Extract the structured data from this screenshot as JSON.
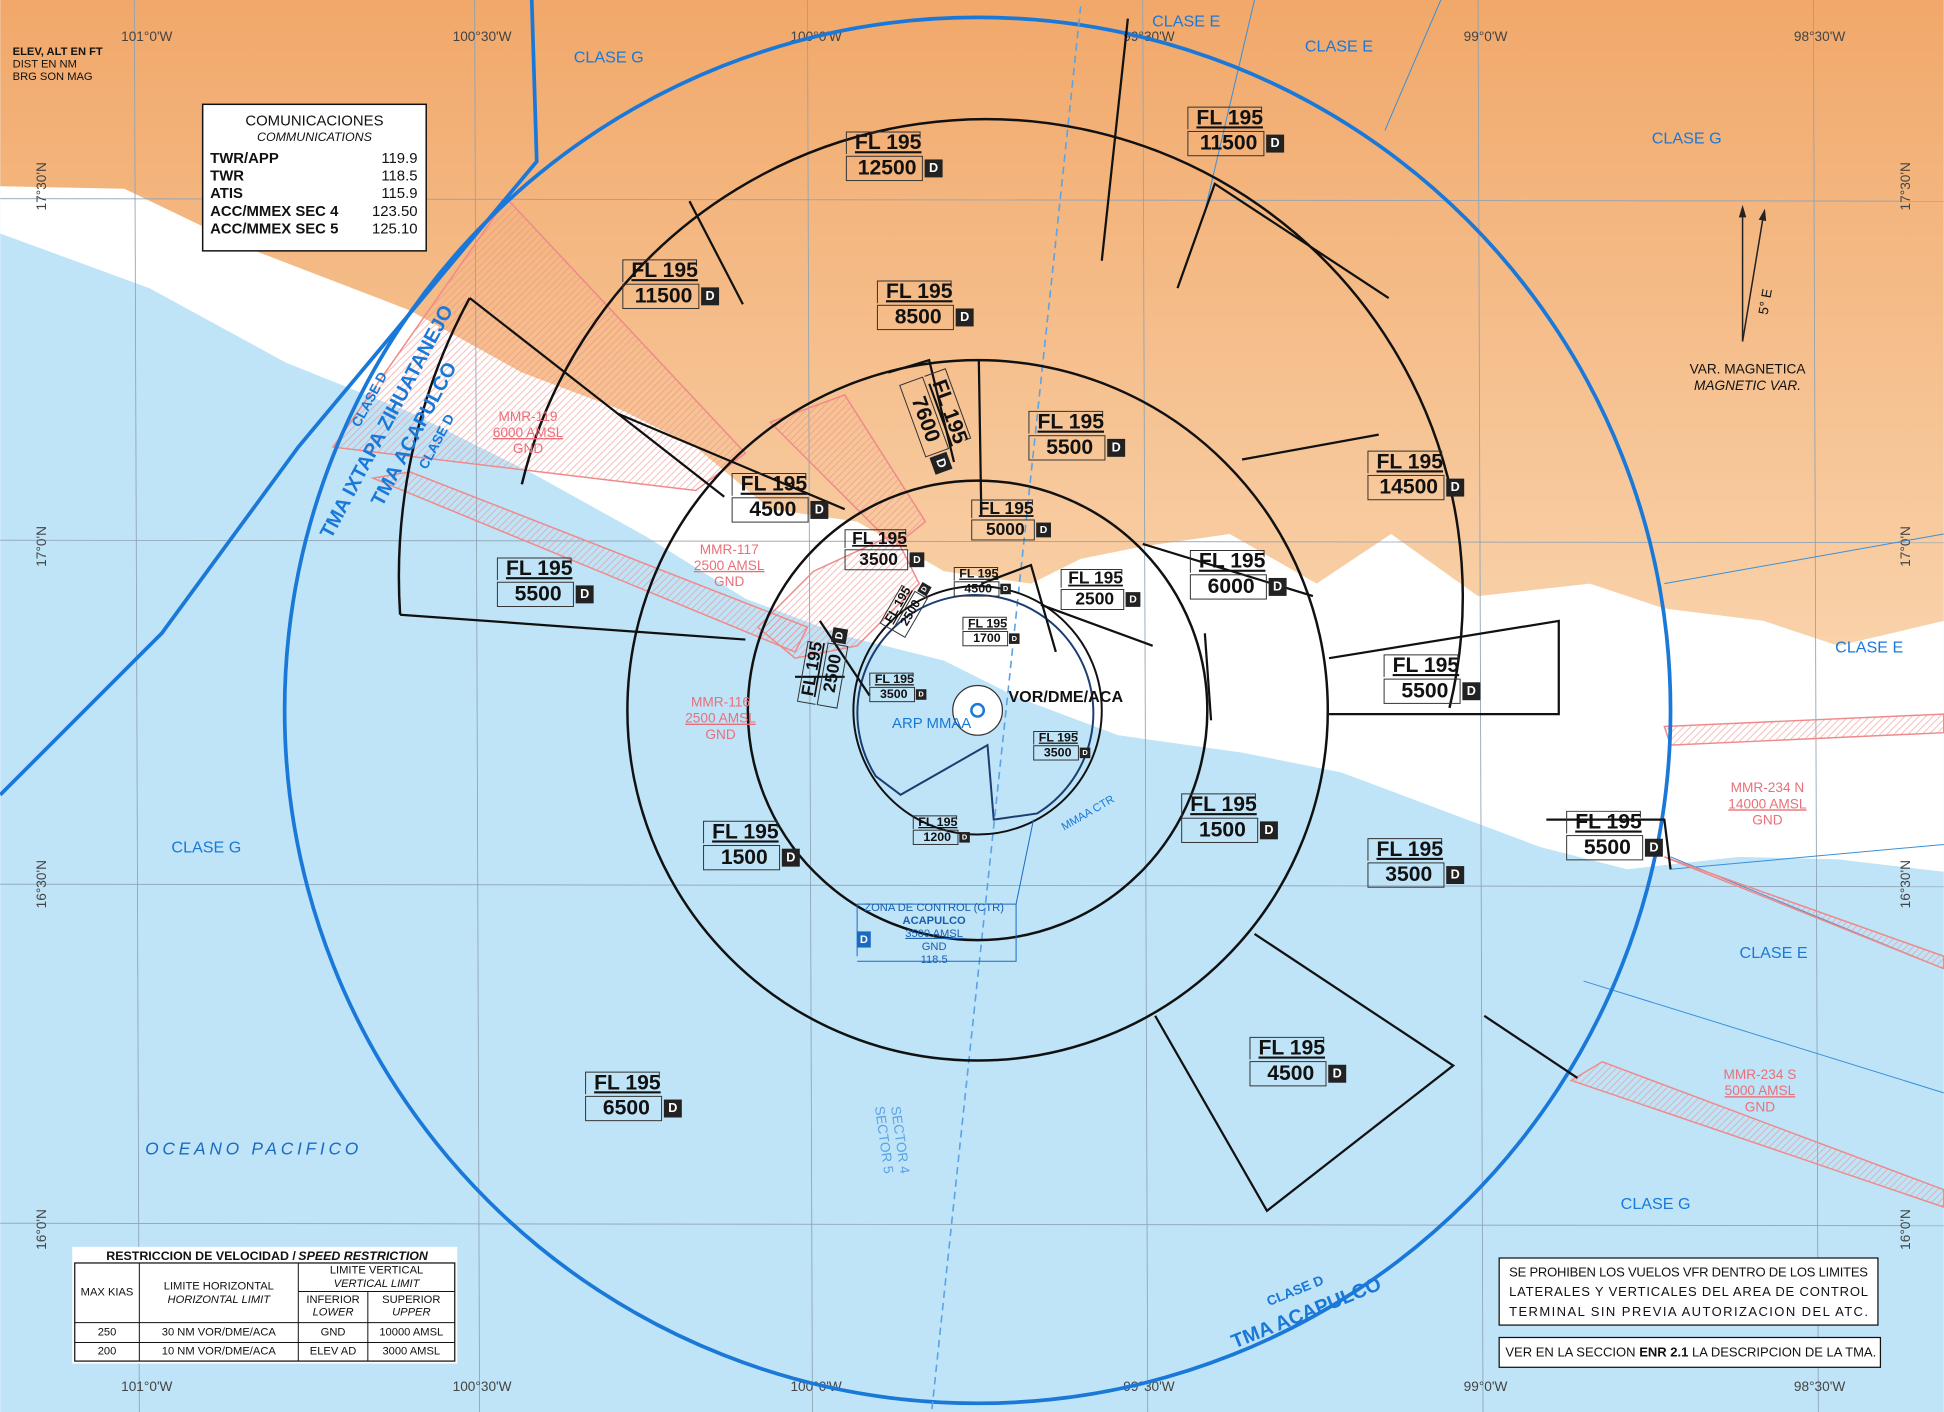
{
  "header_notes": [
    "ELEV, ALT EN FT",
    "DIST EN NM",
    "BRG SON MAG"
  ],
  "lon_labels": [
    "101°0'W",
    "100°30'W",
    "100°0'W",
    "99°30'W",
    "99°0'W",
    "98°30'W"
  ],
  "lat_labels": [
    "17°30'N",
    "17°0'N",
    "16°30'N",
    "16°0'N"
  ],
  "communications": {
    "title": "COMUNICACIONES",
    "subtitle": "COMMUNICATIONS",
    "rows": [
      [
        "TWR/APP",
        "119.9"
      ],
      [
        "TWR",
        "118.5"
      ],
      [
        "ATIS",
        "115.9"
      ],
      [
        "ACC/MMEX SEC 4",
        "123.50"
      ],
      [
        "ACC/MMEX SEC 5",
        "125.10"
      ]
    ]
  },
  "badge": "D",
  "sectors": [
    {
      "upper": "FL 195",
      "lower": "12500"
    },
    {
      "upper": "FL 195",
      "lower": "11500"
    },
    {
      "upper": "FL 195",
      "lower": "11500"
    },
    {
      "upper": "FL 195",
      "lower": "8500"
    },
    {
      "upper": "FL 195",
      "lower": "7600"
    },
    {
      "upper": "FL 195",
      "lower": "5500"
    },
    {
      "upper": "FL 195",
      "lower": "14500"
    },
    {
      "upper": "FL 195",
      "lower": "4500"
    },
    {
      "upper": "FL 195",
      "lower": "3500"
    },
    {
      "upper": "FL 195",
      "lower": "5000"
    },
    {
      "upper": "FL 195",
      "lower": "5500"
    },
    {
      "upper": "FL 195",
      "lower": "2500"
    },
    {
      "upper": "FL 195",
      "lower": "6000"
    },
    {
      "upper": "FL 195",
      "lower": "1700"
    },
    {
      "upper": "FL 195",
      "lower": "4500"
    },
    {
      "upper": "FL 195",
      "lower": "2500"
    },
    {
      "upper": "FL 195",
      "lower": "2500"
    },
    {
      "upper": "FL 195",
      "lower": "3500"
    },
    {
      "upper": "FL 195",
      "lower": "5500"
    },
    {
      "upper": "FL 195",
      "lower": "3500"
    },
    {
      "upper": "FL 195",
      "lower": "1500"
    },
    {
      "upper": "FL 195",
      "lower": "1500"
    },
    {
      "upper": "FL 195",
      "lower": "1200"
    },
    {
      "upper": "FL 195",
      "lower": "5500"
    },
    {
      "upper": "FL 195",
      "lower": "3500"
    },
    {
      "upper": "FL 195",
      "lower": "4500"
    },
    {
      "upper": "FL 195",
      "lower": "6500"
    }
  ],
  "class_labels": [
    "CLASE G",
    "CLASE E",
    "CLASE E",
    "CLASE G",
    "CLASE E",
    "CLASE G",
    "CLASE E",
    "CLASE G"
  ],
  "restricted": [
    {
      "name": "MMR-119",
      "upper": "6000 AMSL",
      "lower": "GND"
    },
    {
      "name": "MMR-117",
      "upper": "2500 AMSL",
      "lower": "GND"
    },
    {
      "name": "MMR-116",
      "upper": "2500 AMSL",
      "lower": "GND"
    },
    {
      "name": "MMR-234 N",
      "upper": "14000 AMSL",
      "lower": "GND"
    },
    {
      "name": "MMR-234 S",
      "upper": "5000 AMSL",
      "lower": "GND"
    }
  ],
  "tma_labels": [
    "TMA IXTAPA ZIHUATANEJO",
    "CLASE D",
    "TMA ACAPULCO",
    "CLASE D",
    "CLASE D",
    "TMA ACAPULCO"
  ],
  "ctr": {
    "title": "ZONA DE CONTROL (CTR)",
    "name": "ACAPULCO",
    "upper": "3500 AMSL",
    "lower": "GND",
    "freq": "118.5"
  },
  "vor": "VOR/DME/ACA",
  "arp": "ARP MMAA",
  "ctr_label": "MMAA CTR",
  "sector_line": [
    "SECTOR 4",
    "SECTOR 5"
  ],
  "magvar": {
    "value": "5° E",
    "es": "VAR. MAGNETICA",
    "en": "MAGNETIC VAR."
  },
  "ocean": "OCEANO PACIFICO",
  "speed_table": {
    "title": "RESTRICCION DE VELOCIDAD /",
    "title_en": "SPEED RESTRICTION",
    "headers": [
      "MAX KIAS",
      "LIMITE HORIZONTAL",
      "HORIZONTAL LIMIT",
      "LIMITE VERTICAL",
      "VERTICAL LIMIT",
      "INFERIOR",
      "LOWER",
      "SUPERIOR",
      "UPPER"
    ],
    "rows": [
      [
        "250",
        "30 NM VOR/DME/ACA",
        "GND",
        "10000 AMSL"
      ],
      [
        "200",
        "10 NM VOR/DME/ACA",
        "ELEV AD",
        "3000 AMSL"
      ]
    ]
  },
  "note_vfr": [
    "SE PROHIBEN LOS VUELOS VFR DENTRO DE LOS LIMITES",
    "LATERALES Y VERTICALES DEL AREA DE CONTROL",
    "TERMINAL SIN PREVIA AUTORIZACION DEL ATC."
  ],
  "note_enr": [
    "VER EN LA SECCION",
    "ENR 2.1",
    "LA DESCRIPCION DE LA TMA."
  ]
}
